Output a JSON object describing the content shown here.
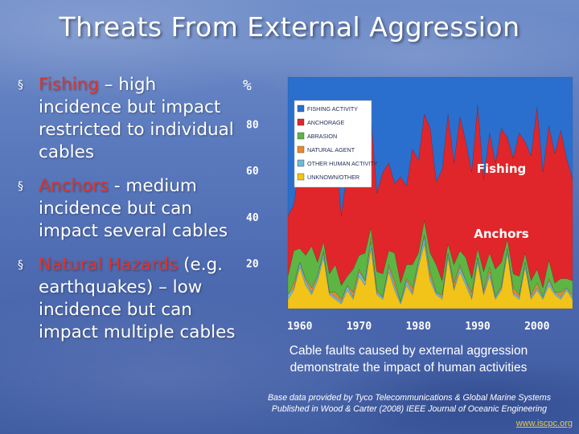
{
  "title": "Threats From External Aggression",
  "bullets": [
    {
      "key": "Fishing",
      "rest": " – high incidence but impact restricted to individual cables"
    },
    {
      "key": "Anchors",
      "rest": " - medium incidence but can impact several cables"
    },
    {
      "key": "Natural Hazards",
      "rest": " (e.g. earthquakes) – low incidence but can impact multiple cables"
    }
  ],
  "bullet_marker": "§",
  "caption_line1": "Cable faults caused by external aggression",
  "caption_line2": "demonstrate the impact of human activities",
  "source_line1": "Base data provided by Tyco Telecommunications & Global Marine Systems",
  "source_line2": "Published in Wood & Carter (2008) IEEE Journal of Oceanic Engineering",
  "link_text": "www.iscpc.org",
  "colors": {
    "highlight_text": "#e0332b",
    "link": "#e8c84a",
    "plot_background": "#2a6fcd"
  },
  "chart_data": {
    "type": "area",
    "stacked": true,
    "ylabel": "%",
    "ylim": [
      0,
      100
    ],
    "yticks": [
      20,
      40,
      60,
      80
    ],
    "xticks": [
      1960,
      1970,
      1980,
      1990,
      2000
    ],
    "xlim": [
      1958,
      2006
    ],
    "legend_position": "top-left",
    "annotations": [
      {
        "text": "Fishing",
        "x": 1994,
        "y": 60
      },
      {
        "text": "Anchors",
        "x": 1994,
        "y": 32
      }
    ],
    "x": [
      1958,
      1959,
      1960,
      1961,
      1962,
      1963,
      1964,
      1965,
      1966,
      1967,
      1968,
      1969,
      1970,
      1971,
      1972,
      1973,
      1974,
      1975,
      1976,
      1977,
      1978,
      1979,
      1980,
      1981,
      1982,
      1983,
      1984,
      1985,
      1986,
      1987,
      1988,
      1989,
      1990,
      1991,
      1992,
      1993,
      1994,
      1995,
      1996,
      1997,
      1998,
      1999,
      2000,
      2001,
      2002,
      2003,
      2004,
      2005,
      2006
    ],
    "series": [
      {
        "name": "UNKNOWN/OTHER",
        "color": "#f2c318",
        "values": [
          4,
          8,
          18,
          10,
          6,
          12,
          22,
          6,
          4,
          2,
          8,
          4,
          14,
          10,
          26,
          6,
          4,
          16,
          8,
          2,
          10,
          6,
          18,
          28,
          12,
          6,
          4,
          22,
          8,
          16,
          10,
          4,
          20,
          6,
          14,
          4,
          8,
          24,
          6,
          4,
          18,
          4,
          8,
          4,
          10,
          6,
          4,
          8,
          4
        ]
      },
      {
        "name": "OTHER HUMAN ACTIVITY",
        "color": "#6fb9d9",
        "values": [
          2,
          1,
          2,
          2,
          1,
          2,
          2,
          1,
          1,
          1,
          2,
          1,
          2,
          2,
          3,
          1,
          1,
          2,
          2,
          1,
          2,
          1,
          2,
          3,
          2,
          1,
          1,
          2,
          1,
          2,
          2,
          1,
          2,
          1,
          2,
          1,
          1,
          2,
          1,
          1,
          2,
          1,
          1,
          1,
          2,
          1,
          1,
          1,
          1
        ]
      },
      {
        "name": "NATURAL AGENT",
        "color": "#e88a2e",
        "values": [
          0,
          2,
          0,
          1,
          2,
          0,
          1,
          0,
          2,
          1,
          0,
          2,
          1,
          0,
          2,
          1,
          0,
          1,
          2,
          0,
          1,
          2,
          0,
          1,
          2,
          0,
          1,
          0,
          2,
          1,
          0,
          2,
          0,
          1,
          2,
          0,
          1,
          0,
          2,
          1,
          0,
          1,
          2,
          0,
          1,
          0,
          2,
          0,
          1
        ]
      },
      {
        "name": "ABRASION",
        "color": "#5db544",
        "values": [
          8,
          14,
          6,
          10,
          18,
          6,
          4,
          8,
          12,
          6,
          4,
          10,
          6,
          12,
          4,
          8,
          10,
          6,
          12,
          8,
          6,
          10,
          4,
          6,
          8,
          12,
          6,
          4,
          8,
          6,
          10,
          6,
          4,
          8,
          6,
          12,
          10,
          4,
          6,
          8,
          4,
          6,
          6,
          4,
          8,
          4,
          6,
          4,
          6
        ]
      },
      {
        "name": "ANCHORAGE",
        "color": "#e0262a",
        "values": [
          26,
          20,
          38,
          30,
          44,
          34,
          28,
          40,
          52,
          30,
          46,
          36,
          42,
          30,
          48,
          34,
          44,
          38,
          30,
          46,
          34,
          50,
          40,
          46,
          54,
          36,
          48,
          56,
          44,
          58,
          50,
          46,
          62,
          40,
          52,
          46,
          58,
          44,
          50,
          62,
          48,
          54,
          70,
          50,
          58,
          56,
          64,
          52,
          44
        ]
      },
      {
        "name": "FISHING ACTIVITY",
        "color": "#2a6fcd",
        "values": [
          60,
          55,
          36,
          47,
          29,
          46,
          43,
          45,
          29,
          60,
          40,
          47,
          35,
          46,
          17,
          50,
          41,
          37,
          46,
          43,
          47,
          31,
          36,
          16,
          22,
          45,
          40,
          16,
          37,
          17,
          28,
          41,
          12,
          44,
          24,
          37,
          22,
          26,
          35,
          24,
          28,
          34,
          13,
          41,
          21,
          33,
          23,
          35,
          44
        ]
      }
    ]
  }
}
